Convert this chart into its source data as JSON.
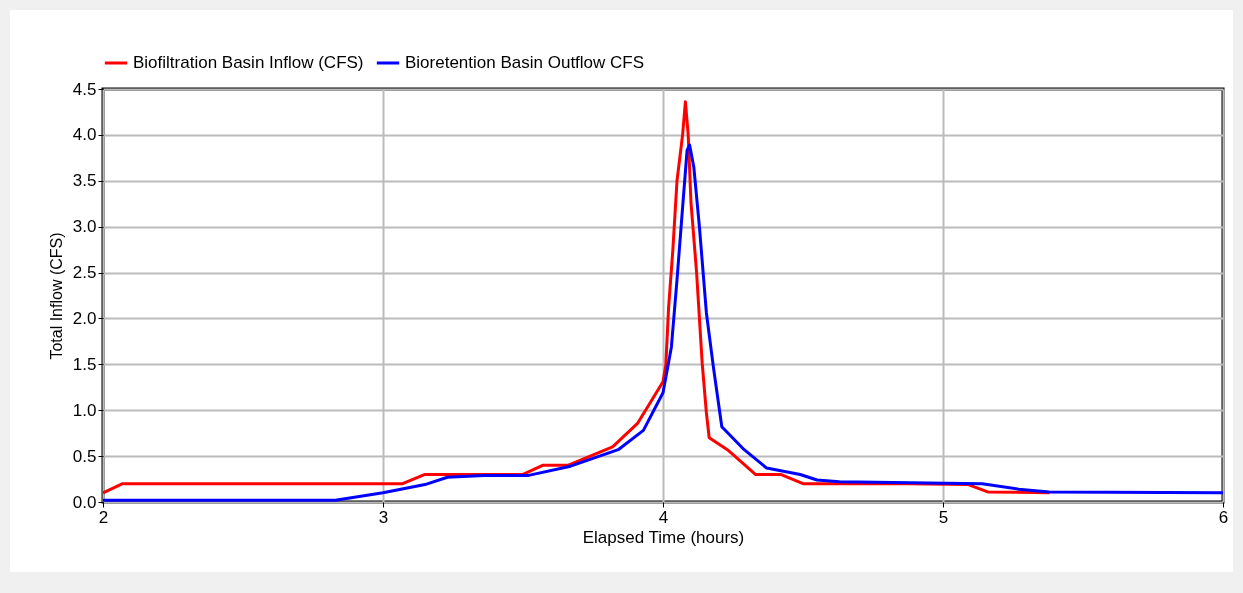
{
  "chart_data": {
    "type": "line",
    "xlabel": "Elapsed Time (hours)",
    "ylabel": "Total Inflow (CFS)",
    "xlim": [
      2,
      6
    ],
    "xticks": [
      2,
      3,
      4,
      5,
      6
    ],
    "ylim": [
      0,
      4.5
    ],
    "yticks": [
      {
        "value": 0,
        "label": "0.0"
      },
      {
        "value": 0.5,
        "label": "0.5"
      },
      {
        "value": 1,
        "label": "1.0"
      },
      {
        "value": 1.5,
        "label": "1.5"
      },
      {
        "value": 2,
        "label": "2.0"
      },
      {
        "value": 2.5,
        "label": "2.5"
      },
      {
        "value": 3,
        "label": "3.0"
      },
      {
        "value": 3.5,
        "label": "3.5"
      },
      {
        "value": 4,
        "label": "4.0"
      },
      {
        "value": 4.5,
        "label": "4.5"
      }
    ],
    "grid": true,
    "legend": "top",
    "line_style": "solid",
    "series": [
      {
        "name": "Biofiltration Basin Inflow (CFS)",
        "color": "#ff0000",
        "x": [
          2.0,
          2.07,
          3.07,
          3.15,
          3.5,
          3.57,
          3.66,
          3.82,
          3.91,
          4.0,
          4.01,
          4.02,
          4.035,
          4.05,
          4.07,
          4.08,
          4.09,
          4.1,
          4.12,
          4.14,
          4.155,
          4.165,
          4.23,
          4.33,
          4.42,
          4.5,
          4.87,
          5.09,
          5.16,
          5.38
        ],
        "values": [
          0.1,
          0.2,
          0.2,
          0.3,
          0.3,
          0.4,
          0.4,
          0.6,
          0.86,
          1.31,
          1.49,
          2.12,
          2.74,
          3.5,
          4.0,
          4.36,
          4.0,
          3.26,
          2.5,
          1.51,
          0.97,
          0.7,
          0.57,
          0.3,
          0.3,
          0.2,
          0.2,
          0.19,
          0.11,
          0.1
        ]
      },
      {
        "name": "Bioretention Basin Outflow CFS",
        "color": "#0000ff",
        "x": [
          2.0,
          2.83,
          3.0,
          3.15,
          3.23,
          3.36,
          3.52,
          3.67,
          3.84,
          3.93,
          4.0,
          4.03,
          4.05,
          4.07,
          4.086,
          4.095,
          4.11,
          4.13,
          4.155,
          4.18,
          4.21,
          4.29,
          4.37,
          4.49,
          4.55,
          4.63,
          5.14,
          5.27,
          5.38,
          6.0
        ],
        "values": [
          0.02,
          0.02,
          0.1,
          0.19,
          0.27,
          0.29,
          0.29,
          0.39,
          0.57,
          0.78,
          1.19,
          1.69,
          2.42,
          3.21,
          3.83,
          3.89,
          3.65,
          3.0,
          2.06,
          1.47,
          0.82,
          0.57,
          0.37,
          0.3,
          0.24,
          0.22,
          0.2,
          0.14,
          0.11,
          0.1
        ]
      }
    ]
  }
}
